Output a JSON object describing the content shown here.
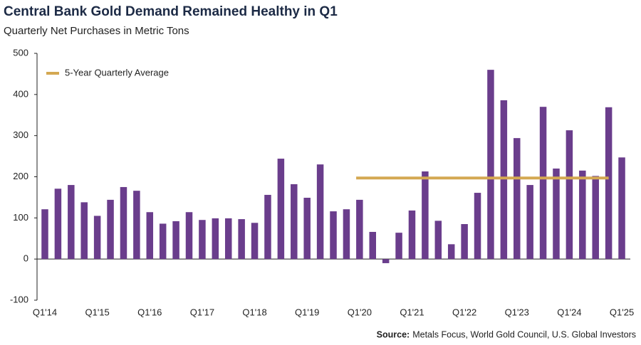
{
  "chart_data": {
    "type": "bar",
    "title": "Central Bank Gold Demand Remained Healthy in Q1",
    "subtitle": "Quarterly Net Purchases in Metric Tons",
    "source_label": "Source:",
    "source": "Metals Focus, World Gold Council, U.S. Global Investors",
    "categories": [
      "Q1'14",
      null,
      null,
      null,
      "Q1'15",
      null,
      null,
      null,
      "Q1'16",
      null,
      null,
      null,
      "Q1'17",
      null,
      null,
      null,
      "Q1'18",
      null,
      null,
      null,
      "Q1'19",
      null,
      null,
      null,
      "Q1'20",
      null,
      null,
      null,
      "Q1'21",
      null,
      null,
      null,
      "Q1'22",
      null,
      null,
      null,
      "Q1'23",
      null,
      null,
      null,
      "Q1'24",
      null,
      null,
      null,
      "Q1'25"
    ],
    "series": [
      {
        "name": "Net Purchases",
        "type": "bar",
        "color": "#6a3d8c",
        "values": [
          121,
          171,
          180,
          138,
          105,
          144,
          175,
          166,
          114,
          86,
          92,
          114,
          95,
          99,
          99,
          97,
          88,
          156,
          244,
          182,
          149,
          230,
          116,
          121,
          144,
          66,
          -10,
          64,
          118,
          213,
          93,
          36,
          85,
          161,
          460,
          386,
          294,
          180,
          370,
          220,
          313,
          215,
          202,
          369,
          247
        ]
      },
      {
        "name": "5-Year Quarterly Average",
        "type": "line",
        "color": "#d4a852",
        "values": [
          null,
          null,
          null,
          null,
          null,
          null,
          null,
          null,
          null,
          null,
          null,
          null,
          null,
          null,
          null,
          null,
          null,
          null,
          null,
          null,
          null,
          null,
          null,
          null,
          197,
          197,
          197,
          197,
          197,
          197,
          197,
          197,
          197,
          197,
          197,
          197,
          197,
          197,
          197,
          197,
          197,
          197,
          197,
          197,
          null
        ]
      }
    ],
    "ylim": [
      -100,
      500
    ],
    "yticks": [
      -100,
      0,
      100,
      200,
      300,
      400,
      500
    ],
    "grid": false,
    "legend": "upper left"
  }
}
